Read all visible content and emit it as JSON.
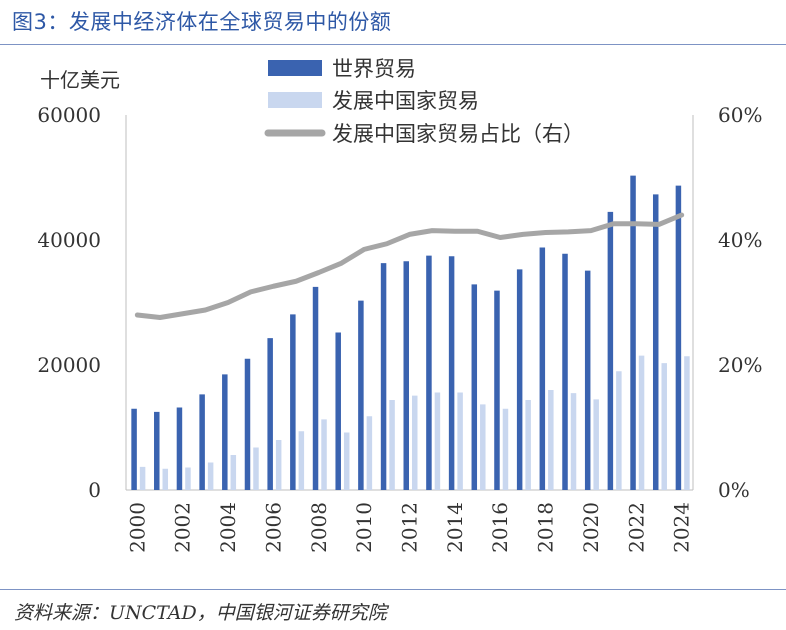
{
  "title": "图3：发展中经济体在全球贸易中的份额",
  "source": "资料来源：UNCTAD，中国银河证券研究院",
  "colors": {
    "world_trade": "#3a63b0",
    "developing_trade": "#c9d7ef",
    "share_line": "#a6a6a6",
    "title": "#2e58a6"
  },
  "chart_data": {
    "type": "bar",
    "unit_label": "十亿美元",
    "categories": [
      "2000",
      "2001",
      "2002",
      "2003",
      "2004",
      "2005",
      "2006",
      "2007",
      "2008",
      "2009",
      "2010",
      "2011",
      "2012",
      "2013",
      "2014",
      "2015",
      "2016",
      "2017",
      "2018",
      "2019",
      "2020",
      "2021",
      "2022",
      "2023",
      "2024"
    ],
    "x_tick_labels": [
      "2000",
      "2002",
      "2004",
      "2006",
      "2008",
      "2010",
      "2012",
      "2014",
      "2016",
      "2018",
      "2020",
      "2022",
      "2024"
    ],
    "y_left": {
      "lim": [
        0,
        60000
      ],
      "ticks": [
        "0",
        "20000",
        "40000",
        "60000"
      ]
    },
    "y_right": {
      "lim": [
        0,
        60
      ],
      "ticks": [
        "0%",
        "20%",
        "40%",
        "60%"
      ]
    },
    "series": [
      {
        "name": "世界贸易",
        "type": "bar",
        "values": [
          13000,
          12500,
          13200,
          15300,
          18500,
          21000,
          24300,
          28100,
          32500,
          25200,
          30300,
          36300,
          36600,
          37500,
          37400,
          32900,
          31900,
          35300,
          38800,
          37800,
          35100,
          44500,
          50300,
          47300,
          48700
        ]
      },
      {
        "name": "发展中国家贸易",
        "type": "bar",
        "values": [
          3700,
          3400,
          3600,
          4400,
          5600,
          6800,
          8000,
          9400,
          11300,
          9200,
          11800,
          14400,
          15100,
          15600,
          15600,
          13700,
          13000,
          14400,
          16000,
          15500,
          14500,
          19000,
          21500,
          20300,
          21400
        ]
      },
      {
        "name": "发展中国家贸易占比（右）",
        "type": "line",
        "axis": "right",
        "values": [
          28.0,
          27.6,
          28.2,
          28.8,
          30.0,
          31.7,
          32.6,
          33.4,
          34.8,
          36.3,
          38.5,
          39.4,
          40.9,
          41.5,
          41.4,
          41.4,
          40.4,
          40.9,
          41.2,
          41.3,
          41.5,
          42.6,
          42.6,
          42.5,
          44.0
        ]
      }
    ]
  }
}
